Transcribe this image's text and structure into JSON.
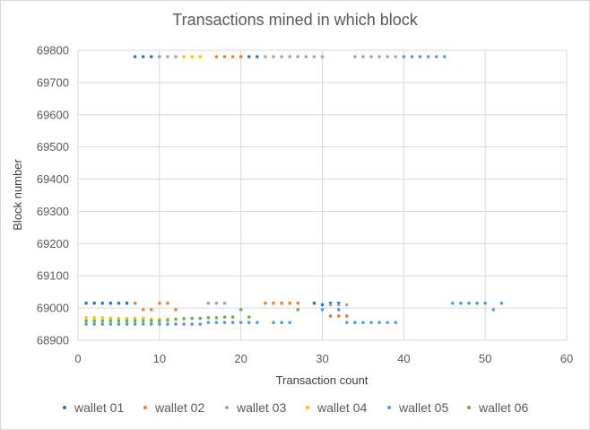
{
  "chart_data": {
    "type": "scatter",
    "title": "Transactions mined in which block",
    "xlabel": "Transaction count",
    "ylabel": "Block number",
    "xlim": [
      0,
      60
    ],
    "ylim": [
      68900,
      69800
    ],
    "xticks": [
      0,
      10,
      20,
      30,
      40,
      50,
      60
    ],
    "yticks": [
      68900,
      69000,
      69100,
      69200,
      69300,
      69400,
      69500,
      69600,
      69700,
      69800
    ],
    "grid": true,
    "legend_position": "bottom",
    "series": [
      {
        "name": "wallet 01",
        "color": "#2E75B6",
        "points": [
          [
            1,
            69015
          ],
          [
            2,
            69015
          ],
          [
            3,
            69015
          ],
          [
            4,
            69015
          ],
          [
            5,
            69015
          ],
          [
            6,
            69015
          ],
          [
            7,
            69780
          ],
          [
            8,
            69780
          ],
          [
            9,
            69780
          ],
          [
            10,
            69780
          ],
          [
            20,
            69780
          ],
          [
            21,
            69780
          ],
          [
            22,
            69780
          ],
          [
            29,
            69015
          ],
          [
            30,
            69010
          ],
          [
            31,
            69015
          ],
          [
            32,
            69015
          ]
        ]
      },
      {
        "name": "wallet 02",
        "color": "#ED7D31",
        "points": [
          [
            7,
            69015
          ],
          [
            8,
            68995
          ],
          [
            9,
            68995
          ],
          [
            10,
            69015
          ],
          [
            11,
            69015
          ],
          [
            12,
            68995
          ],
          [
            17,
            69780
          ],
          [
            18,
            69780
          ],
          [
            19,
            69780
          ],
          [
            20,
            69780
          ],
          [
            23,
            69015
          ],
          [
            24,
            69015
          ],
          [
            25,
            69015
          ],
          [
            26,
            69015
          ],
          [
            27,
            69015
          ],
          [
            31,
            68975
          ],
          [
            32,
            68975
          ],
          [
            33,
            68975
          ]
        ]
      },
      {
        "name": "wallet 03",
        "color": "#A5A5A5",
        "points": [
          [
            10,
            69780
          ],
          [
            11,
            69780
          ],
          [
            12,
            69780
          ],
          [
            16,
            69015
          ],
          [
            17,
            69015
          ],
          [
            18,
            69015
          ],
          [
            23,
            69780
          ],
          [
            24,
            69780
          ],
          [
            25,
            69780
          ],
          [
            26,
            69780
          ],
          [
            27,
            69780
          ],
          [
            28,
            69780
          ],
          [
            29,
            69780
          ],
          [
            30,
            69780
          ],
          [
            31,
            69010
          ],
          [
            32,
            69010
          ],
          [
            33,
            69010
          ],
          [
            34,
            69780
          ],
          [
            35,
            69780
          ],
          [
            36,
            69780
          ],
          [
            37,
            69780
          ],
          [
            38,
            69780
          ],
          [
            39,
            69780
          ],
          [
            40,
            69780
          ]
        ]
      },
      {
        "name": "wallet 04",
        "color": "#FFC000",
        "points": [
          [
            1,
            68970
          ],
          [
            2,
            68970
          ],
          [
            3,
            68970
          ],
          [
            4,
            68968
          ],
          [
            5,
            68968
          ],
          [
            6,
            68968
          ],
          [
            7,
            68968
          ],
          [
            8,
            68968
          ],
          [
            9,
            68965
          ],
          [
            10,
            68965
          ],
          [
            11,
            68965
          ],
          [
            13,
            69780
          ],
          [
            14,
            69780
          ],
          [
            15,
            69780
          ]
        ]
      },
      {
        "name": "wallet 05",
        "color": "#5B9BD5",
        "points": [
          [
            1,
            68950
          ],
          [
            2,
            68950
          ],
          [
            3,
            68950
          ],
          [
            4,
            68950
          ],
          [
            5,
            68950
          ],
          [
            6,
            68950
          ],
          [
            7,
            68950
          ],
          [
            8,
            68950
          ],
          [
            9,
            68950
          ],
          [
            10,
            68950
          ],
          [
            11,
            68950
          ],
          [
            12,
            68950
          ],
          [
            13,
            68950
          ],
          [
            14,
            68950
          ],
          [
            15,
            68950
          ],
          [
            16,
            68955
          ],
          [
            17,
            68955
          ],
          [
            18,
            68955
          ],
          [
            19,
            68955
          ],
          [
            20,
            68955
          ],
          [
            21,
            68955
          ],
          [
            22,
            68955
          ],
          [
            24,
            68955
          ],
          [
            25,
            68955
          ],
          [
            26,
            68955
          ],
          [
            30,
            68995
          ],
          [
            32,
            68995
          ],
          [
            33,
            68955
          ],
          [
            34,
            68955
          ],
          [
            35,
            68955
          ],
          [
            36,
            68955
          ],
          [
            37,
            68955
          ],
          [
            38,
            68955
          ],
          [
            39,
            68955
          ],
          [
            40,
            69780
          ],
          [
            41,
            69780
          ],
          [
            42,
            69780
          ],
          [
            43,
            69780
          ],
          [
            44,
            69780
          ],
          [
            45,
            69780
          ],
          [
            46,
            69015
          ],
          [
            47,
            69015
          ],
          [
            48,
            69015
          ],
          [
            49,
            69015
          ],
          [
            50,
            69015
          ],
          [
            51,
            68995
          ],
          [
            52,
            69015
          ]
        ]
      },
      {
        "name": "wallet 06",
        "color": "#70AD47",
        "points": [
          [
            1,
            68960
          ],
          [
            2,
            68960
          ],
          [
            3,
            68960
          ],
          [
            4,
            68960
          ],
          [
            5,
            68960
          ],
          [
            6,
            68960
          ],
          [
            7,
            68960
          ],
          [
            8,
            68960
          ],
          [
            9,
            68960
          ],
          [
            10,
            68960
          ],
          [
            11,
            68962
          ],
          [
            12,
            68965
          ],
          [
            13,
            68967
          ],
          [
            14,
            68968
          ],
          [
            15,
            68968
          ],
          [
            16,
            68970
          ],
          [
            17,
            68970
          ],
          [
            18,
            68972
          ],
          [
            19,
            68972
          ],
          [
            20,
            68995
          ],
          [
            21,
            68972
          ],
          [
            27,
            68995
          ]
        ]
      }
    ]
  }
}
